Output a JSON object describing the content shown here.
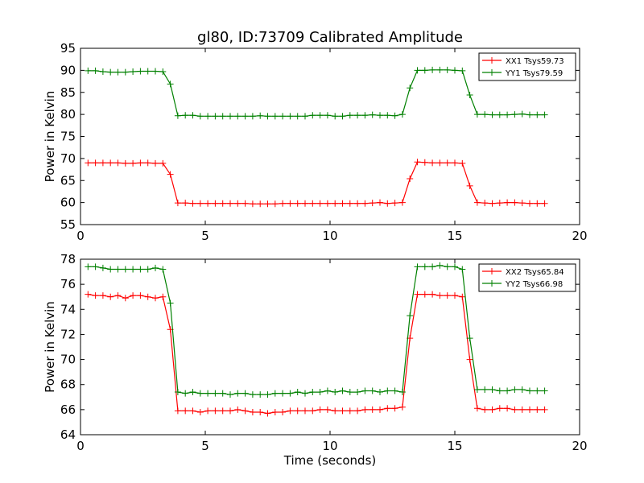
{
  "colors": {
    "series_red": "#ff0000",
    "series_green": "#008000",
    "frame": "#000000",
    "background": "#ffffff"
  },
  "chart_data": [
    {
      "type": "line",
      "title": "gl80, ID:73709 Calibrated Amplitude",
      "xlabel": "",
      "ylabel": "Power in Kelvin",
      "xlim": [
        0,
        20
      ],
      "ylim": [
        55,
        95
      ],
      "xticks": [
        "0",
        "5",
        "10",
        "15",
        "20"
      ],
      "yticks": [
        "55",
        "60",
        "65",
        "70",
        "75",
        "80",
        "85",
        "90",
        "95"
      ],
      "legend_position": "top-right",
      "grid": false,
      "x": [
        0.3,
        0.6,
        0.9,
        1.2,
        1.5,
        1.8,
        2.1,
        2.4,
        2.7,
        3.0,
        3.3,
        3.6,
        3.9,
        4.2,
        4.5,
        4.8,
        5.1,
        5.4,
        5.7,
        6.0,
        6.3,
        6.6,
        6.9,
        7.2,
        7.5,
        7.8,
        8.1,
        8.4,
        8.7,
        9.0,
        9.3,
        9.6,
        9.9,
        10.2,
        10.5,
        10.8,
        11.1,
        11.4,
        11.7,
        12.0,
        12.3,
        12.6,
        12.9,
        13.2,
        13.5,
        13.8,
        14.1,
        14.4,
        14.7,
        15.0,
        15.3,
        15.6,
        15.9,
        16.2,
        16.5,
        16.8,
        17.1,
        17.4,
        17.7,
        18.0,
        18.3,
        18.6
      ],
      "series": [
        {
          "name": "XX1 Tsys59.73",
          "color": "#ff0000",
          "values": [
            69.0,
            69.0,
            69.0,
            69.0,
            69.0,
            68.9,
            68.9,
            69.0,
            69.0,
            68.9,
            68.9,
            66.4,
            59.9,
            59.9,
            59.8,
            59.8,
            59.8,
            59.8,
            59.8,
            59.8,
            59.8,
            59.8,
            59.7,
            59.7,
            59.7,
            59.7,
            59.8,
            59.8,
            59.8,
            59.8,
            59.8,
            59.8,
            59.8,
            59.8,
            59.8,
            59.8,
            59.8,
            59.8,
            59.9,
            60.0,
            59.8,
            59.9,
            60.0,
            65.4,
            69.2,
            69.1,
            69.0,
            69.0,
            69.0,
            69.0,
            68.9,
            63.8,
            60.0,
            59.9,
            59.8,
            59.9,
            60.0,
            60.0,
            59.9,
            59.8,
            59.8,
            59.8
          ]
        },
        {
          "name": "YY1 Tsys79.59",
          "color": "#008000",
          "values": [
            89.9,
            89.9,
            89.7,
            89.6,
            89.6,
            89.6,
            89.7,
            89.8,
            89.8,
            89.8,
            89.7,
            86.9,
            79.7,
            79.8,
            79.8,
            79.6,
            79.6,
            79.6,
            79.6,
            79.6,
            79.6,
            79.6,
            79.6,
            79.7,
            79.6,
            79.6,
            79.6,
            79.6,
            79.6,
            79.6,
            79.8,
            79.8,
            79.8,
            79.6,
            79.6,
            79.8,
            79.8,
            79.8,
            79.9,
            79.8,
            79.8,
            79.7,
            80.0,
            86.0,
            90.0,
            90.0,
            90.1,
            90.1,
            90.1,
            90.0,
            89.9,
            84.4,
            80.0,
            80.0,
            79.9,
            79.9,
            79.9,
            80.0,
            80.1,
            79.9,
            79.9,
            79.9
          ]
        }
      ]
    },
    {
      "type": "line",
      "title": "",
      "xlabel": "Time (seconds)",
      "ylabel": "Power in Kelvin",
      "xlim": [
        0,
        20
      ],
      "ylim": [
        64,
        78
      ],
      "xticks": [
        "0",
        "5",
        "10",
        "15",
        "20"
      ],
      "yticks": [
        "64",
        "66",
        "68",
        "70",
        "72",
        "74",
        "76",
        "78"
      ],
      "legend_position": "top-right",
      "grid": false,
      "x": [
        0.3,
        0.6,
        0.9,
        1.2,
        1.5,
        1.8,
        2.1,
        2.4,
        2.7,
        3.0,
        3.3,
        3.6,
        3.9,
        4.2,
        4.5,
        4.8,
        5.1,
        5.4,
        5.7,
        6.0,
        6.3,
        6.6,
        6.9,
        7.2,
        7.5,
        7.8,
        8.1,
        8.4,
        8.7,
        9.0,
        9.3,
        9.6,
        9.9,
        10.2,
        10.5,
        10.8,
        11.1,
        11.4,
        11.7,
        12.0,
        12.3,
        12.6,
        12.9,
        13.2,
        13.5,
        13.8,
        14.1,
        14.4,
        14.7,
        15.0,
        15.3,
        15.6,
        15.9,
        16.2,
        16.5,
        16.8,
        17.1,
        17.4,
        17.7,
        18.0,
        18.3,
        18.6
      ],
      "series": [
        {
          "name": "XX2 Tsys65.84",
          "color": "#ff0000",
          "values": [
            75.2,
            75.1,
            75.1,
            75.0,
            75.1,
            74.9,
            75.1,
            75.1,
            75.0,
            74.9,
            75.0,
            72.4,
            65.9,
            65.9,
            65.9,
            65.8,
            65.9,
            65.9,
            65.9,
            65.9,
            66.0,
            65.9,
            65.8,
            65.8,
            65.7,
            65.8,
            65.8,
            65.9,
            65.9,
            65.9,
            65.9,
            66.0,
            66.0,
            65.9,
            65.9,
            65.9,
            65.9,
            66.0,
            66.0,
            66.0,
            66.1,
            66.1,
            66.2,
            71.7,
            75.2,
            75.2,
            75.2,
            75.1,
            75.1,
            75.1,
            75.0,
            70.0,
            66.1,
            66.0,
            66.0,
            66.1,
            66.1,
            66.0,
            66.0,
            66.0,
            66.0,
            66.0
          ]
        },
        {
          "name": "YY2 Tsys66.98",
          "color": "#008000",
          "values": [
            77.4,
            77.4,
            77.3,
            77.2,
            77.2,
            77.2,
            77.2,
            77.2,
            77.2,
            77.3,
            77.2,
            74.5,
            67.4,
            67.3,
            67.4,
            67.3,
            67.3,
            67.3,
            67.3,
            67.2,
            67.3,
            67.3,
            67.2,
            67.2,
            67.2,
            67.3,
            67.3,
            67.3,
            67.4,
            67.3,
            67.4,
            67.4,
            67.5,
            67.4,
            67.5,
            67.4,
            67.4,
            67.5,
            67.5,
            67.4,
            67.5,
            67.5,
            67.4,
            73.5,
            77.4,
            77.4,
            77.4,
            77.5,
            77.4,
            77.4,
            77.2,
            71.7,
            67.6,
            67.6,
            67.6,
            67.5,
            67.5,
            67.6,
            67.6,
            67.5,
            67.5,
            67.5
          ]
        }
      ]
    }
  ]
}
